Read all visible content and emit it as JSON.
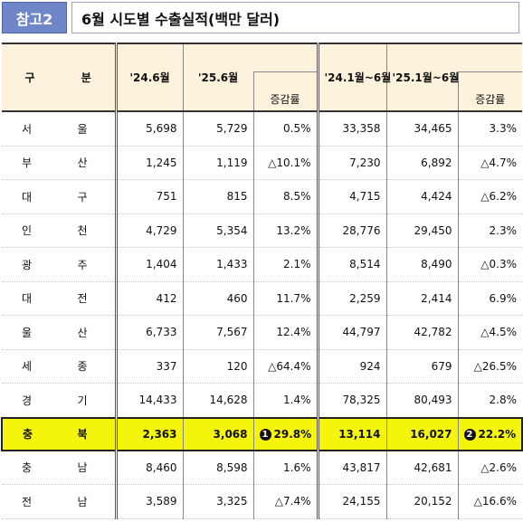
{
  "header": {
    "badge": "참고2",
    "title": "6월 시도별 수출실적(백만 달러)"
  },
  "columns": {
    "region": [
      "구",
      "분"
    ],
    "m24": "'24.6월",
    "m25": "'25.6월",
    "chg1": "증감률",
    "cum24": "'24.1월~6월",
    "cum25": "'25.1월~6월",
    "chg2": "증감률"
  },
  "rows": [
    {
      "r1": "서",
      "r2": "울",
      "m24": "5,698",
      "m25": "5,729",
      "chg1": "0.5%",
      "cum24": "33,358",
      "cum25": "34,465",
      "chg2": "3.3%"
    },
    {
      "r1": "부",
      "r2": "산",
      "m24": "1,245",
      "m25": "1,119",
      "chg1": "△10.1%",
      "cum24": "7,230",
      "cum25": "6,892",
      "chg2": "△4.7%"
    },
    {
      "r1": "대",
      "r2": "구",
      "m24": "751",
      "m25": "815",
      "chg1": "8.5%",
      "cum24": "4,715",
      "cum25": "4,424",
      "chg2": "△6.2%"
    },
    {
      "r1": "인",
      "r2": "천",
      "m24": "4,729",
      "m25": "5,354",
      "chg1": "13.2%",
      "cum24": "28,776",
      "cum25": "29,450",
      "chg2": "2.3%"
    },
    {
      "r1": "광",
      "r2": "주",
      "m24": "1,404",
      "m25": "1,433",
      "chg1": "2.1%",
      "cum24": "8,514",
      "cum25": "8,490",
      "chg2": "△0.3%"
    },
    {
      "r1": "대",
      "r2": "전",
      "m24": "412",
      "m25": "460",
      "chg1": "11.7%",
      "cum24": "2,259",
      "cum25": "2,414",
      "chg2": "6.9%"
    },
    {
      "r1": "울",
      "r2": "산",
      "m24": "6,733",
      "m25": "7,567",
      "chg1": "12.4%",
      "cum24": "44,797",
      "cum25": "42,782",
      "chg2": "△4.5%"
    },
    {
      "r1": "세",
      "r2": "종",
      "m24": "337",
      "m25": "120",
      "chg1": "△64.4%",
      "cum24": "924",
      "cum25": "679",
      "chg2": "△26.5%"
    },
    {
      "r1": "경",
      "r2": "기",
      "m24": "14,433",
      "m25": "14,628",
      "chg1": "1.4%",
      "cum24": "78,325",
      "cum25": "80,493",
      "chg2": "2.8%"
    },
    {
      "r1": "충",
      "r2": "북",
      "m24": "2,363",
      "m25": "3,068",
      "chg1": "29.8%",
      "cum24": "13,114",
      "cum25": "16,027",
      "chg2": "22.2%",
      "mark1": "1",
      "mark2": "2"
    },
    {
      "r1": "충",
      "r2": "남",
      "m24": "8,460",
      "m25": "8,598",
      "chg1": "1.6%",
      "cum24": "43,817",
      "cum25": "42,681",
      "chg2": "△2.6%"
    },
    {
      "r1": "전",
      "r2": "남",
      "m24": "3,589",
      "m25": "3,325",
      "chg1": "△7.4%",
      "cum24": "24,155",
      "cum25": "20,152",
      "chg2": "△16.6%"
    }
  ],
  "highlight_color": "#f5f50c",
  "badge_color": "#6f86c8"
}
